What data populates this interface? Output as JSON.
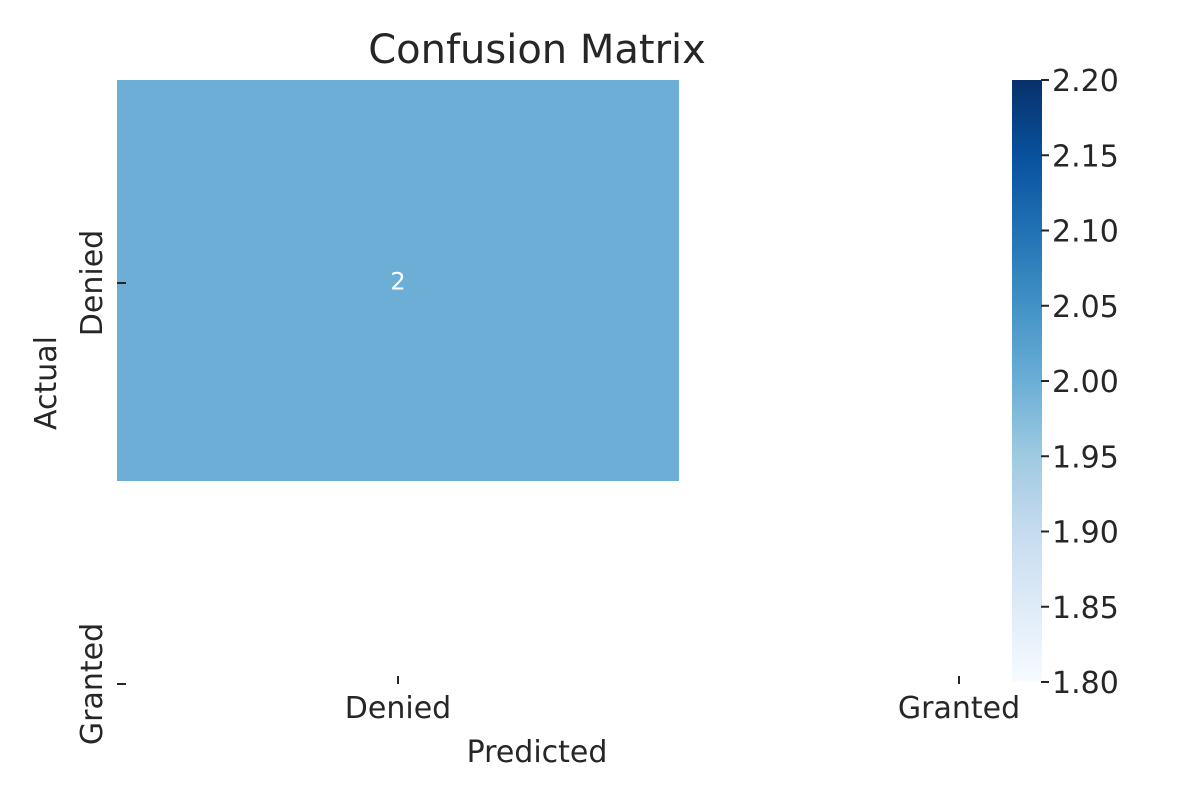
{
  "chart_data": {
    "type": "heatmap",
    "title": "Confusion Matrix",
    "xlabel": "Predicted",
    "ylabel": "Actual",
    "x_categories": [
      "Denied",
      "Granted"
    ],
    "y_categories": [
      "Denied",
      "Granted"
    ],
    "cells": [
      {
        "row": 0,
        "col": 0,
        "value": 2,
        "label": "2"
      }
    ],
    "colorbar": {
      "range": [
        1.8,
        2.2
      ],
      "ticks": [
        "1.80",
        "1.85",
        "1.90",
        "1.95",
        "2.00",
        "2.05",
        "2.10",
        "2.15",
        "2.20"
      ],
      "colormap": "Blues",
      "colors": [
        "#f7fbff",
        "#deebf7",
        "#c6dbef",
        "#9ecae1",
        "#6baed6",
        "#4292c6",
        "#2171b5",
        "#08519c",
        "#08306b"
      ]
    },
    "cell_color": "#6daed6",
    "annotation_color": "#ffffff"
  }
}
